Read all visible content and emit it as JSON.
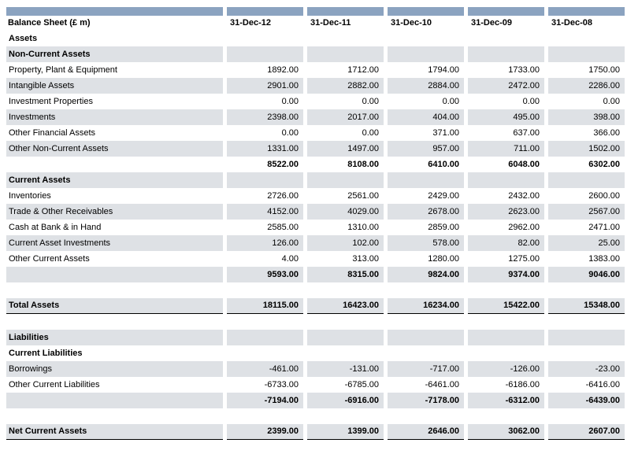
{
  "table": {
    "title": "Balance Sheet  (£ m)",
    "columns": [
      "31-Dec-12",
      "31-Dec-11",
      "31-Dec-10",
      "31-Dec-09",
      "31-Dec-08"
    ],
    "colors": {
      "band": "#8BA3C0",
      "row_shade": "#DEE1E5",
      "total_border": "#000000"
    },
    "rows": [
      {
        "type": "section",
        "shade": "white",
        "label": "Assets"
      },
      {
        "type": "section",
        "shade": "gray",
        "label": "Non-Current Assets"
      },
      {
        "type": "data",
        "shade": "white",
        "label": "Property, Plant & Equipment",
        "values": [
          "1892.00",
          "1712.00",
          "1794.00",
          "1733.00",
          "1750.00"
        ]
      },
      {
        "type": "data",
        "shade": "gray",
        "label": "Intangible Assets",
        "values": [
          "2901.00",
          "2882.00",
          "2884.00",
          "2472.00",
          "2286.00"
        ]
      },
      {
        "type": "data",
        "shade": "white",
        "label": "Investment Properties",
        "values": [
          "0.00",
          "0.00",
          "0.00",
          "0.00",
          "0.00"
        ]
      },
      {
        "type": "data",
        "shade": "gray",
        "label": "Investments",
        "values": [
          "2398.00",
          "2017.00",
          "404.00",
          "495.00",
          "398.00"
        ]
      },
      {
        "type": "data",
        "shade": "white",
        "label": "Other Financial Assets",
        "values": [
          "0.00",
          "0.00",
          "371.00",
          "637.00",
          "366.00"
        ]
      },
      {
        "type": "data",
        "shade": "gray",
        "label": "Other Non-Current Assets",
        "values": [
          "1331.00",
          "1497.00",
          "957.00",
          "711.00",
          "1502.00"
        ]
      },
      {
        "type": "subtotal",
        "shade": "white",
        "label": "",
        "values": [
          "8522.00",
          "8108.00",
          "6410.00",
          "6048.00",
          "6302.00"
        ]
      },
      {
        "type": "section",
        "shade": "gray",
        "label": "Current Assets"
      },
      {
        "type": "data",
        "shade": "white",
        "label": "Inventories",
        "values": [
          "2726.00",
          "2561.00",
          "2429.00",
          "2432.00",
          "2600.00"
        ]
      },
      {
        "type": "data",
        "shade": "gray",
        "label": "Trade & Other Receivables",
        "values": [
          "4152.00",
          "4029.00",
          "2678.00",
          "2623.00",
          "2567.00"
        ]
      },
      {
        "type": "data",
        "shade": "white",
        "label": "Cash at Bank & in Hand",
        "values": [
          "2585.00",
          "1310.00",
          "2859.00",
          "2962.00",
          "2471.00"
        ]
      },
      {
        "type": "data",
        "shade": "gray",
        "label": "Current Asset Investments",
        "values": [
          "126.00",
          "102.00",
          "578.00",
          "82.00",
          "25.00"
        ]
      },
      {
        "type": "data",
        "shade": "white",
        "label": "Other Current Assets",
        "values": [
          "4.00",
          "313.00",
          "1280.00",
          "1275.00",
          "1383.00"
        ]
      },
      {
        "type": "subtotal",
        "shade": "gray",
        "label": "",
        "values": [
          "9593.00",
          "8315.00",
          "9824.00",
          "9374.00",
          "9046.00"
        ]
      },
      {
        "type": "blank"
      },
      {
        "type": "total",
        "shade": "gray",
        "label": "Total Assets",
        "values": [
          "18115.00",
          "16423.00",
          "16234.00",
          "15422.00",
          "15348.00"
        ]
      },
      {
        "type": "blank"
      },
      {
        "type": "section",
        "shade": "gray",
        "label": "Liabilities"
      },
      {
        "type": "section",
        "shade": "white",
        "label": "Current Liabilities"
      },
      {
        "type": "data",
        "shade": "gray",
        "label": "Borrowings",
        "values": [
          "-461.00",
          "-131.00",
          "-717.00",
          "-126.00",
          "-23.00"
        ]
      },
      {
        "type": "data",
        "shade": "white",
        "label": "Other Current Liabilities",
        "values": [
          "-6733.00",
          "-6785.00",
          "-6461.00",
          "-6186.00",
          "-6416.00"
        ]
      },
      {
        "type": "subtotal",
        "shade": "gray",
        "label": "",
        "values": [
          "-7194.00",
          "-6916.00",
          "-7178.00",
          "-6312.00",
          "-6439.00"
        ]
      },
      {
        "type": "blank"
      },
      {
        "type": "total",
        "shade": "gray",
        "label": "Net Current Assets",
        "values": [
          "2399.00",
          "1399.00",
          "2646.00",
          "3062.00",
          "2607.00"
        ]
      }
    ]
  }
}
